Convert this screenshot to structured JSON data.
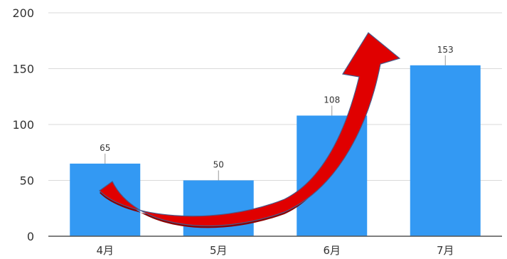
{
  "chart_data": {
    "type": "bar",
    "categories": [
      "4月",
      "5月",
      "6月",
      "7月"
    ],
    "values": [
      65,
      50,
      108,
      153
    ],
    "data_labels": [
      "65",
      "50",
      "108",
      "153"
    ],
    "title": "",
    "xlabel": "",
    "ylabel": "",
    "ylim": [
      0,
      200
    ],
    "yticks": [
      0,
      50,
      100,
      150,
      200
    ],
    "ytick_labels": [
      "0",
      "50",
      "100",
      "150",
      "200"
    ],
    "grid": true,
    "legend": "none",
    "bar_color": "#3399f3",
    "annotations": [
      {
        "type": "curved-arrow",
        "from_category": "4月",
        "to_category": "7月",
        "direction": "upward trend",
        "fill_color": "#e00000",
        "shadow_color": "#8b0000"
      }
    ]
  }
}
